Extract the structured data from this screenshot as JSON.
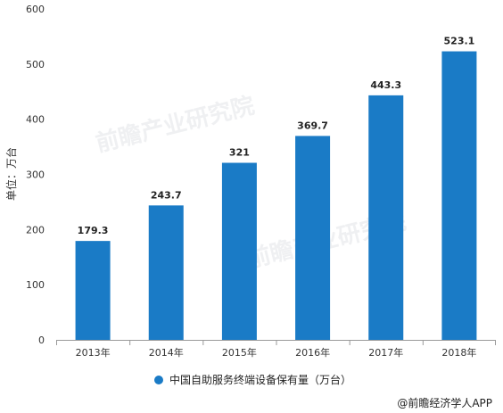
{
  "chart_data": {
    "type": "bar",
    "categories": [
      "2013年",
      "2014年",
      "2015年",
      "2016年",
      "2017年",
      "2018年"
    ],
    "series": [
      {
        "name": "中国自助服务终端设备保有量（万台）",
        "values": [
          179.3,
          243.7,
          321,
          369.7,
          443.3,
          523.1
        ],
        "color": "#1a7bc6"
      }
    ],
    "data_labels": [
      "179.3",
      "243.7",
      "321",
      "369.7",
      "443.3",
      "523.1"
    ],
    "ylabel": "单位：万台",
    "ylim": [
      0,
      600
    ],
    "yticks": [
      0,
      100,
      200,
      300,
      400,
      500,
      600
    ],
    "grid": false,
    "legend_position": "bottom-center"
  },
  "watermark": "前瞻产业研究院",
  "source": "@前瞻经济学人APP"
}
